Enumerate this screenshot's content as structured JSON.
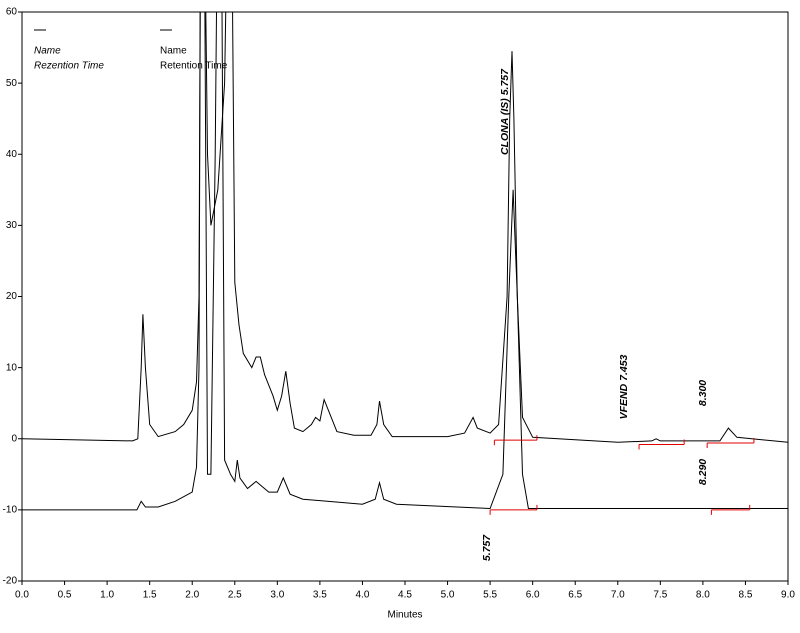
{
  "chart_data": {
    "type": "line",
    "x_label": "Minutes",
    "xlim": [
      0,
      9
    ],
    "ylim": [
      -20,
      60
    ],
    "xticks": [
      {
        "value": 0,
        "label": "0.0"
      },
      0.5,
      {
        "value": 1,
        "label": "1.0"
      },
      1.5,
      {
        "value": 2,
        "label": "2.0"
      },
      2.5,
      {
        "value": 3,
        "label": "3.0"
      },
      3.5,
      {
        "value": 4,
        "label": "4.0"
      },
      4.5,
      {
        "value": 5,
        "label": "5.0"
      },
      5.5,
      {
        "value": 6,
        "label": "6.0"
      },
      6.5,
      {
        "value": 7,
        "label": "7.0"
      },
      7.5,
      {
        "value": 8,
        "label": "8.0"
      },
      8.5,
      {
        "value": 9,
        "label": "9.0"
      }
    ],
    "yticks": [
      60,
      50,
      40,
      30,
      20,
      10,
      0,
      -10,
      -20
    ],
    "legend": [
      [
        "Name",
        "Rezention Time"
      ],
      [
        "Name",
        "Retention Time"
      ]
    ],
    "series": [
      {
        "color": "#000000",
        "x": [
          0,
          1.3,
          1.36,
          1.4,
          1.42,
          1.45,
          1.5,
          1.6,
          1.8,
          1.9,
          2.0,
          2.05,
          2.08,
          2.1,
          2.14,
          2.18,
          2.22,
          2.3,
          2.38,
          2.42,
          2.46,
          2.5,
          2.55,
          2.6,
          2.7,
          2.75,
          2.8,
          2.85,
          2.95,
          3.0,
          3.05,
          3.1,
          3.15,
          3.2,
          3.3,
          3.4,
          3.45,
          3.5,
          3.55,
          3.6,
          3.7,
          3.9,
          4.1,
          4.17,
          4.2,
          4.25,
          4.35,
          5.0,
          5.2,
          5.3,
          5.35,
          5.5,
          5.6,
          5.7,
          5.73,
          5.757,
          5.78,
          5.82,
          5.88,
          6.0,
          7.0,
          7.4,
          7.45,
          7.5,
          8.2,
          8.3,
          8.4,
          9.0
        ],
        "values": [
          0,
          -0.3,
          0,
          10,
          17.5,
          10,
          2,
          0.3,
          1,
          2,
          4,
          8,
          20,
          80,
          80,
          40,
          30,
          35,
          50,
          80,
          80,
          22,
          16,
          12,
          10,
          11.5,
          11.5,
          9,
          6,
          4,
          6,
          9.5,
          5,
          1.5,
          1,
          2,
          3,
          2.5,
          5.5,
          4,
          1,
          0.5,
          0.5,
          2,
          5.3,
          2,
          0.3,
          0.3,
          0.8,
          3,
          1.5,
          0.8,
          2,
          20,
          45,
          54.5,
          45,
          20,
          3,
          0.2,
          -0.5,
          -0.3,
          0,
          -0.3,
          -0.3,
          1.5,
          0.2,
          -0.5
        ]
      },
      {
        "color": "#000000",
        "x": [
          0,
          1.35,
          1.4,
          1.45,
          1.6,
          1.8,
          2.0,
          2.05,
          2.08,
          2.1,
          2.14,
          2.18,
          2.22,
          2.27,
          2.3,
          2.34,
          2.38,
          2.45,
          2.5,
          2.53,
          2.56,
          2.65,
          2.75,
          2.8,
          2.9,
          3.0,
          3.07,
          3.15,
          3.3,
          3.5,
          4.0,
          4.15,
          4.2,
          4.25,
          4.4,
          5.5,
          5.65,
          5.72,
          5.77,
          5.82,
          5.88,
          5.95,
          9.0
        ],
        "values": [
          -10,
          -10,
          -8.8,
          -9.6,
          -9.6,
          -8.8,
          -7.5,
          -4,
          10,
          80,
          80,
          -5,
          -5,
          40,
          80,
          80,
          -3,
          -5,
          -6,
          -3,
          -5.5,
          -7,
          -6,
          -6.5,
          -7.5,
          -7.5,
          -5.5,
          -7.8,
          -8.5,
          -8.7,
          -9.2,
          -8.5,
          -6.2,
          -8.5,
          -9.2,
          -9.8,
          -5,
          20,
          35,
          20,
          -5,
          -9.8,
          -9.8
        ]
      }
    ],
    "baselines": {
      "color": "#e00000",
      "segments": [
        {
          "x": [
            5.55,
            6.05
          ],
          "y": [
            -0.2,
            -0.2
          ]
        },
        {
          "x": [
            7.25,
            7.78
          ],
          "y": [
            -0.8,
            -0.8
          ]
        },
        {
          "x": [
            8.05,
            8.6
          ],
          "y": [
            -0.6,
            -0.6
          ]
        },
        {
          "x": [
            5.5,
            6.05
          ],
          "y": [
            -10,
            -10
          ]
        },
        {
          "x": [
            8.1,
            8.55
          ],
          "y": [
            -10,
            -10
          ]
        }
      ]
    },
    "annotations": [
      "CLONA (IS) 5.757",
      "VFEND  7.453",
      "8.300",
      "8.290",
      "5.757"
    ]
  }
}
